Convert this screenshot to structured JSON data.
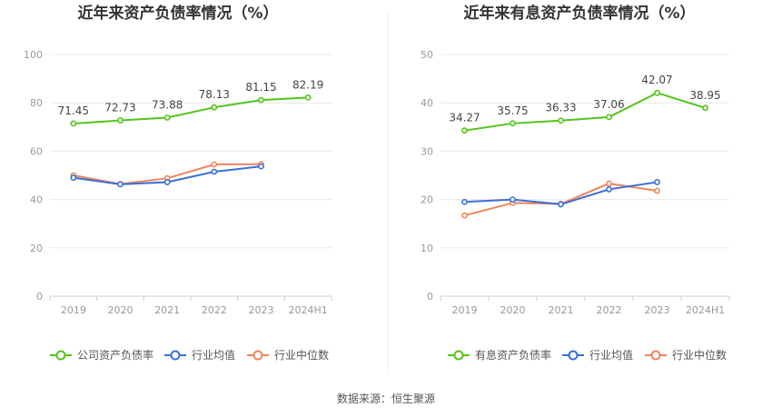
{
  "source_label": "数据来源：恒生聚源",
  "chart_data": [
    {
      "type": "line",
      "title": "近年来资产负债率情况（%）",
      "categories": [
        "2019",
        "2020",
        "2021",
        "2022",
        "2023",
        "2024H1"
      ],
      "ylim": [
        0,
        100
      ],
      "yticks": [
        0,
        20,
        40,
        60,
        80,
        100
      ],
      "grid": true,
      "legend_position": "bottom",
      "series": [
        {
          "name": "公司资产负债率",
          "color": "#52c41a",
          "values": [
            71.45,
            72.73,
            73.88,
            78.13,
            81.15,
            82.19
          ],
          "labels": [
            "71.45",
            "72.73",
            "73.88",
            "78.13",
            "81.15",
            "82.19"
          ]
        },
        {
          "name": "行业均值",
          "color": "#3a6fd8",
          "values": [
            49.0,
            46.3,
            47.2,
            51.5,
            53.7,
            null
          ]
        },
        {
          "name": "行业中位数",
          "color": "#f0845c",
          "values": [
            50.0,
            46.4,
            48.8,
            54.5,
            54.6,
            null
          ]
        }
      ]
    },
    {
      "type": "line",
      "title": "近年来有息资产负债率情况（%）",
      "categories": [
        "2019",
        "2020",
        "2021",
        "2022",
        "2023",
        "2024H1"
      ],
      "ylim": [
        0,
        50
      ],
      "yticks": [
        0,
        10,
        20,
        30,
        40,
        50
      ],
      "grid": true,
      "legend_position": "bottom",
      "series": [
        {
          "name": "有息资产负债率",
          "color": "#52c41a",
          "values": [
            34.27,
            35.75,
            36.33,
            37.06,
            42.07,
            38.95
          ],
          "labels": [
            "34.27",
            "35.75",
            "36.33",
            "37.06",
            "42.07",
            "38.95"
          ]
        },
        {
          "name": "行业均值",
          "color": "#3a6fd8",
          "values": [
            19.5,
            20.0,
            19.0,
            22.1,
            23.6,
            null
          ]
        },
        {
          "name": "行业中位数",
          "color": "#f0845c",
          "values": [
            16.7,
            19.3,
            19.1,
            23.3,
            21.8,
            null
          ]
        }
      ]
    }
  ]
}
